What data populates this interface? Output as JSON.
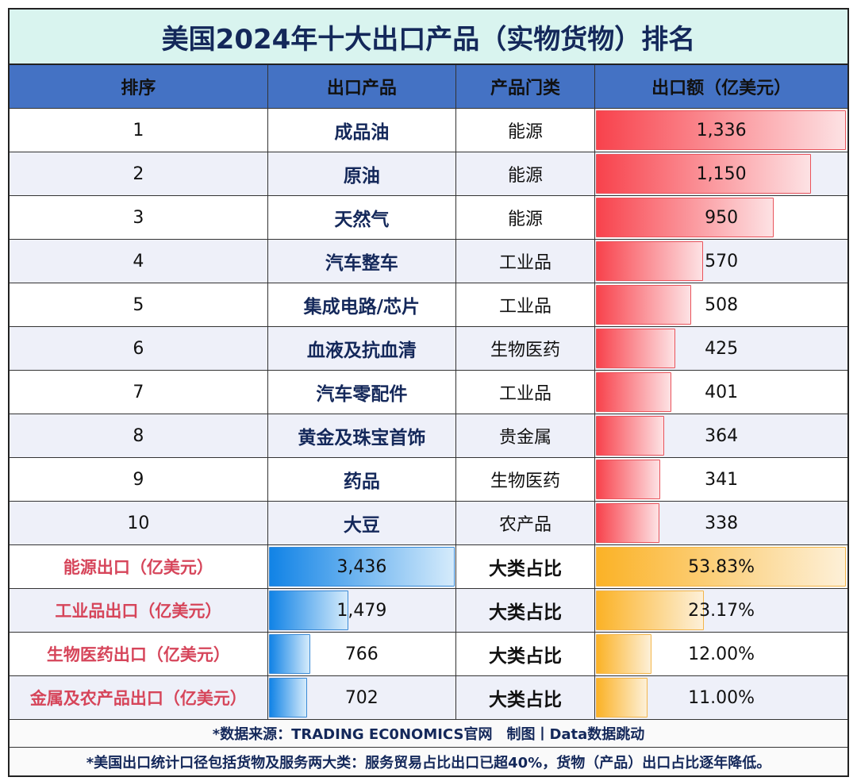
{
  "title": "美国2024年十大出口产品（实物货物）排名",
  "headers": [
    "排序",
    "出口产品",
    "产品门类",
    "出口额（亿美元）"
  ],
  "colors": {
    "bar_red": "#f8424c",
    "bar_blue": "#1183e6",
    "bar_orange": "#fbb226",
    "header": "#4472c4",
    "title_bg": "#d9f4ef"
  },
  "chart_data": {
    "type": "table",
    "title": "美国2024年十大出口产品（实物货物）排名",
    "max_value": 1336,
    "rows": [
      {
        "rank": "1",
        "product": "成品油",
        "category": "能源",
        "value": 1336,
        "label": "1,336"
      },
      {
        "rank": "2",
        "product": "原油",
        "category": "能源",
        "value": 1150,
        "label": "1,150"
      },
      {
        "rank": "3",
        "product": "天然气",
        "category": "能源",
        "value": 950,
        "label": "950"
      },
      {
        "rank": "4",
        "product": "汽车整车",
        "category": "工业品",
        "value": 570,
        "label": "570"
      },
      {
        "rank": "5",
        "product": "集成电路/芯片",
        "category": "工业品",
        "value": 508,
        "label": "508"
      },
      {
        "rank": "6",
        "product": "血液及抗血清",
        "category": "生物医药",
        "value": 425,
        "label": "425"
      },
      {
        "rank": "7",
        "product": "汽车零配件",
        "category": "工业品",
        "value": 401,
        "label": "401"
      },
      {
        "rank": "8",
        "product": "黄金及珠宝首饰",
        "category": "贵金属",
        "value": 364,
        "label": "364"
      },
      {
        "rank": "9",
        "product": "药品",
        "category": "生物医药",
        "value": 341,
        "label": "341"
      },
      {
        "rank": "10",
        "product": "大豆",
        "category": "农产品",
        "value": 338,
        "label": "338"
      }
    ],
    "summary_max": 3436,
    "summary": [
      {
        "label": "能源出口（亿美元）",
        "value": 3436,
        "value_label": "3,436",
        "share_label": "大类占比",
        "share": 53.83,
        "share_text": "53.83%"
      },
      {
        "label": "工业品出口（亿美元）",
        "value": 1479,
        "value_label": "1,479",
        "share_label": "大类占比",
        "share": 23.17,
        "share_text": "23.17%"
      },
      {
        "label": "生物医药出口（亿美元）",
        "value": 766,
        "value_label": "766",
        "share_label": "大类占比",
        "share": 12.0,
        "share_text": "12.00%"
      },
      {
        "label": "金属及农产品出口（亿美元）",
        "value": 702,
        "value_label": "702",
        "share_label": "大类占比",
        "share": 11.0,
        "share_text": "11.00%"
      }
    ]
  },
  "footer": {
    "source": "*数据来源：TRADING EC0NOMICS官网　制图丨Data数据跳动",
    "note": "*美国出口统计口径包括货物及服务两大类：服务贸易占比出口已超40%，货物（产品）出口占比逐年降低。"
  }
}
